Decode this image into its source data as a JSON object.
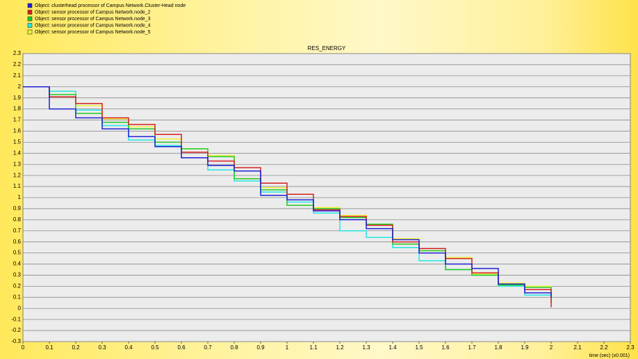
{
  "chart_data": {
    "type": "line",
    "step": true,
    "grid": true,
    "title": "RES_ENERGY",
    "xlabel": "time (sec) (x0.001)",
    "x": [
      0,
      0.1,
      0.2,
      0.3,
      0.4,
      0.5,
      0.6,
      0.7,
      0.8,
      0.9,
      1,
      1.1,
      1.2,
      1.3,
      1.4,
      1.5,
      1.6,
      1.7,
      1.8,
      1.9,
      2
    ],
    "series": [
      {
        "name": "Object: clusterhead processor of Campus Network.Cluster-Head node",
        "color": "#1f1fd6",
        "values": [
          2,
          1.8,
          1.72,
          1.62,
          1.55,
          1.46,
          1.36,
          1.29,
          1.24,
          1.02,
          0.98,
          0.88,
          0.8,
          0.72,
          0.62,
          0.5,
          0.4,
          0.36,
          0.22,
          0.14,
          0.1
        ]
      },
      {
        "name": "Object: sensor processor of Campus Network.node_2",
        "color": "#d61f1f",
        "values": [
          2,
          1.91,
          1.85,
          1.72,
          1.66,
          1.57,
          1.41,
          1.33,
          1.27,
          1.13,
          1.03,
          0.89,
          0.83,
          0.75,
          0.6,
          0.54,
          0.45,
          0.32,
          0.22,
          0.17,
          0.01
        ]
      },
      {
        "name": "Object: sensor processor of Campus Network.node_3",
        "color": "#22c922",
        "values": [
          2,
          1.93,
          1.76,
          1.68,
          1.62,
          1.5,
          1.44,
          1.37,
          1.17,
          1.07,
          0.93,
          0.9,
          0.82,
          0.76,
          0.58,
          0.52,
          0.35,
          0.3,
          0.21,
          0.19,
          0.05
        ]
      },
      {
        "name": "Object: sensor processor of Campus Network.node_4",
        "color": "#22e6e6",
        "values": [
          2,
          1.96,
          1.79,
          1.65,
          1.52,
          1.47,
          1.36,
          1.25,
          1.15,
          1.05,
          0.96,
          0.86,
          0.7,
          0.64,
          0.55,
          0.43,
          0.35,
          0.3,
          0.2,
          0.12,
          0.06
        ]
      },
      {
        "name": "Object: sensor processor of Campus Network.node_5",
        "color": "#f2f23a",
        "values": [
          2,
          1.96,
          1.83,
          1.71,
          1.64,
          1.53,
          1.44,
          1.38,
          1.17,
          1.09,
          1.03,
          0.91,
          0.84,
          0.76,
          0.63,
          0.52,
          0.46,
          0.31,
          0.23,
          0.2,
          0.06
        ]
      }
    ],
    "xlim": [
      0,
      2.3
    ],
    "xticks": [
      0,
      0.1,
      0.2,
      0.3,
      0.4,
      0.5,
      0.6,
      0.7,
      0.8,
      0.9,
      1,
      1.1,
      1.2,
      1.3,
      1.4,
      1.5,
      1.6,
      1.7,
      1.8,
      1.9,
      2,
      2.1,
      2.2,
      2.3
    ],
    "ylim": [
      -0.3,
      2.3
    ],
    "yticks": [
      -0.3,
      -0.2,
      -0.1,
      0,
      0.1,
      0.2,
      0.3,
      0.4,
      0.5,
      0.6,
      0.7,
      0.8,
      0.9,
      1,
      1.1,
      1.2,
      1.3,
      1.4,
      1.5,
      1.6,
      1.7,
      1.8,
      1.9,
      2,
      2.1,
      2.2,
      2.3
    ]
  }
}
